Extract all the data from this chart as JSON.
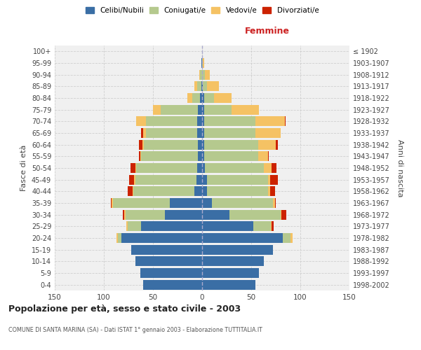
{
  "age_groups": [
    "0-4",
    "5-9",
    "10-14",
    "15-19",
    "20-24",
    "25-29",
    "30-34",
    "35-39",
    "40-44",
    "45-49",
    "50-54",
    "55-59",
    "60-64",
    "65-69",
    "70-74",
    "75-79",
    "80-84",
    "85-89",
    "90-94",
    "95-99",
    "100+"
  ],
  "birth_years": [
    "1998-2002",
    "1993-1997",
    "1988-1992",
    "1983-1987",
    "1978-1982",
    "1973-1977",
    "1968-1972",
    "1963-1967",
    "1958-1962",
    "1953-1957",
    "1948-1952",
    "1943-1947",
    "1938-1942",
    "1933-1937",
    "1928-1932",
    "1923-1927",
    "1918-1922",
    "1913-1917",
    "1908-1912",
    "1903-1907",
    "≤ 1902"
  ],
  "male": {
    "celibi": [
      60,
      63,
      68,
      72,
      82,
      62,
      38,
      33,
      8,
      6,
      5,
      4,
      4,
      5,
      5,
      4,
      2,
      1,
      0,
      1,
      0
    ],
    "coniugati": [
      0,
      0,
      0,
      0,
      4,
      14,
      40,
      58,
      62,
      62,
      62,
      58,
      55,
      52,
      52,
      38,
      8,
      4,
      2,
      0,
      0
    ],
    "vedovi": [
      0,
      0,
      0,
      0,
      1,
      1,
      1,
      1,
      1,
      1,
      1,
      1,
      2,
      3,
      10,
      8,
      5,
      3,
      1,
      0,
      0
    ],
    "divorziati": [
      0,
      0,
      0,
      0,
      0,
      0,
      2,
      1,
      5,
      5,
      5,
      1,
      3,
      2,
      0,
      0,
      0,
      0,
      0,
      0,
      0
    ]
  },
  "female": {
    "nubili": [
      54,
      58,
      63,
      72,
      82,
      52,
      28,
      10,
      5,
      5,
      3,
      2,
      2,
      2,
      2,
      2,
      2,
      1,
      0,
      0,
      0
    ],
    "coniugate": [
      0,
      0,
      0,
      0,
      8,
      18,
      52,
      62,
      62,
      62,
      60,
      55,
      55,
      52,
      52,
      28,
      10,
      4,
      3,
      1,
      0
    ],
    "vedove": [
      0,
      0,
      0,
      0,
      2,
      1,
      1,
      2,
      2,
      2,
      8,
      10,
      18,
      26,
      30,
      28,
      18,
      12,
      5,
      1,
      0
    ],
    "divorziate": [
      0,
      0,
      0,
      0,
      0,
      2,
      5,
      1,
      5,
      8,
      5,
      1,
      2,
      0,
      1,
      0,
      0,
      0,
      0,
      0,
      0
    ]
  },
  "colors": {
    "celibi": "#3a6ea5",
    "coniugati": "#b5c98e",
    "vedovi": "#f5c264",
    "divorziati": "#cc2200"
  },
  "xlim": 150,
  "title": "Popolazione per età, sesso e stato civile - 2003",
  "subtitle": "COMUNE DI SANTA MARINA (SA) - Dati ISTAT 1° gennaio 2003 - Elaborazione TUTTITALIA.IT",
  "ylabel_left": "Fasce di età",
  "ylabel_right": "Anni di nascita",
  "xlabel_right": "Femmine",
  "bg_color": "#ffffff",
  "plot_bg": "#f0f0f0",
  "grid_color": "#cccccc",
  "bar_height": 0.85
}
